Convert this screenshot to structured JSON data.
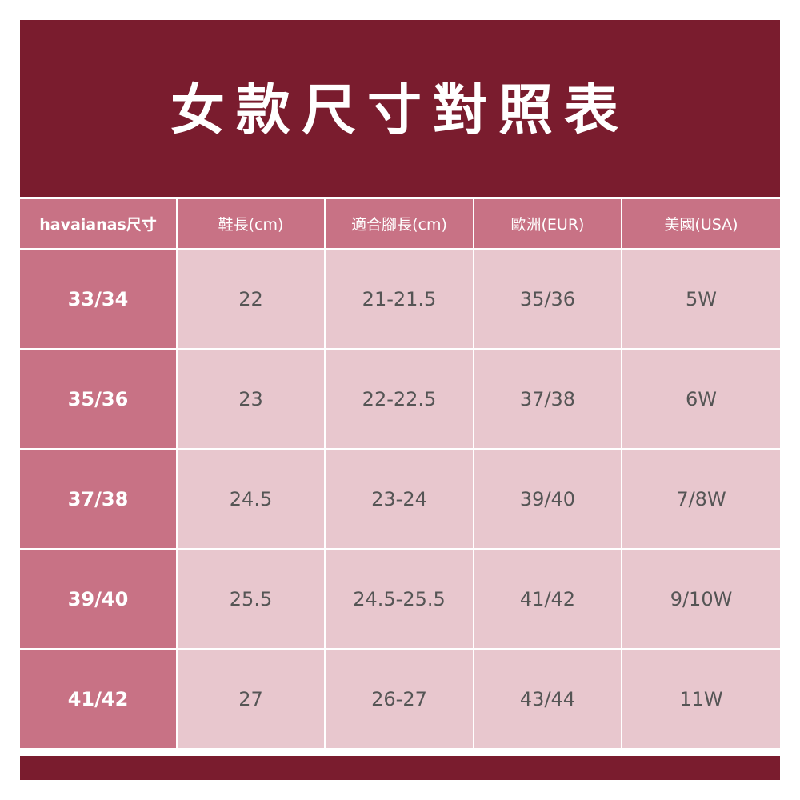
{
  "title": "女款尺寸對照表",
  "colors": {
    "banner": "#7a1c2e",
    "header": "#c87285",
    "cell": "#e8c7ce"
  },
  "table": {
    "headers": [
      "havaianas尺寸",
      "鞋長(cm)",
      "適合腳長(cm)",
      "歐洲(EUR)",
      "美國(USA)"
    ],
    "rows": [
      [
        "33/34",
        "22",
        "21-21.5",
        "35/36",
        "5W"
      ],
      [
        "35/36",
        "23",
        "22-22.5",
        "37/38",
        "6W"
      ],
      [
        "37/38",
        "24.5",
        "23-24",
        "39/40",
        "7/8W"
      ],
      [
        "39/40",
        "25.5",
        "24.5-25.5",
        "41/42",
        "9/10W"
      ],
      [
        "41/42",
        "27",
        "26-27",
        "43/44",
        "11W"
      ]
    ]
  }
}
